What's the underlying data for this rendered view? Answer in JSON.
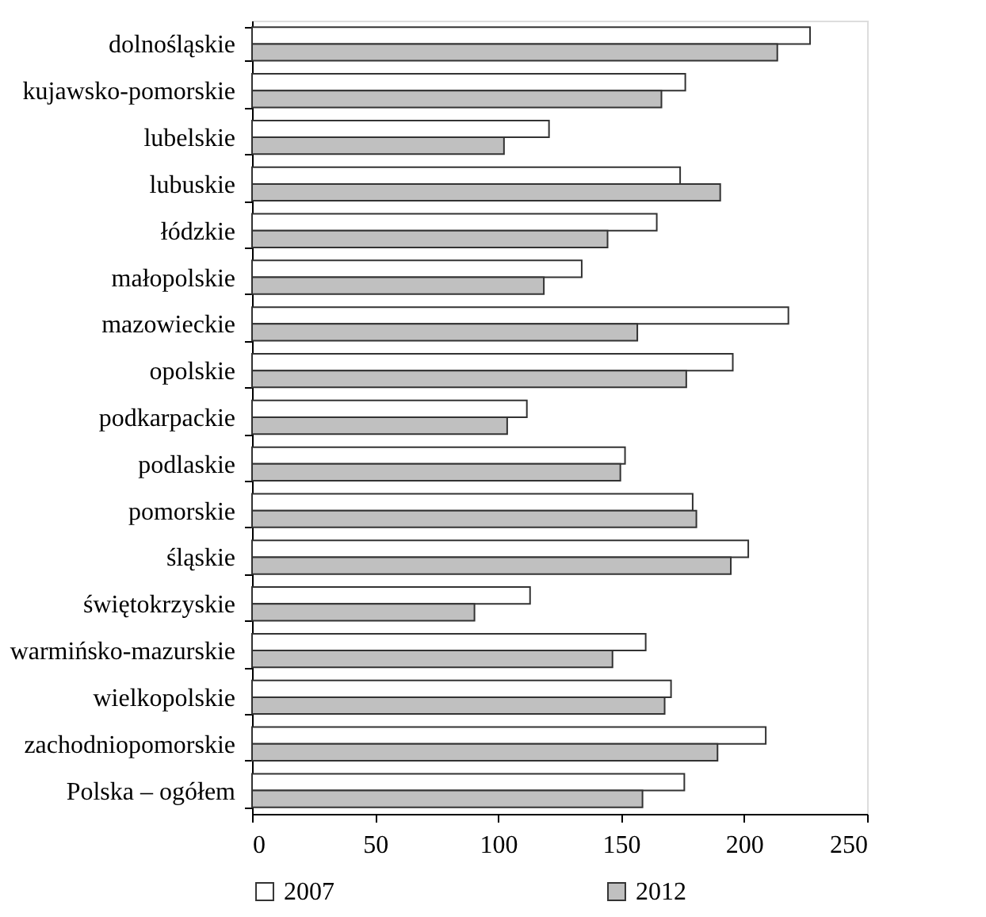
{
  "chart_data": {
    "type": "bar",
    "orientation": "horizontal",
    "categories": [
      "dolnośląskie",
      "kujawsko-pomorskie",
      "lubelskie",
      "lubuskie",
      "łódzkie",
      "małopolskie",
      "mazowieckie",
      "opolskie",
      "podkarpackie",
      "podlaskie",
      "pomorskie",
      "śląskie",
      "świętokrzyskie",
      "warmińsko-mazurskie",
      "wielkopolskie",
      "zachodniopomorskie",
      "Polska – ogółem"
    ],
    "series": [
      {
        "name": "2007",
        "color": "#ffffff",
        "values": [
          226.8,
          176.1,
          120.7,
          174.0,
          164.5,
          134.0,
          218.0,
          195.4,
          111.7,
          151.6,
          179.1,
          201.7,
          113.0,
          160.0,
          170.3,
          208.8,
          175.7
        ]
      },
      {
        "name": "2012",
        "color": "#c0c0c0",
        "values": [
          213.5,
          166.4,
          102.4,
          190.3,
          144.5,
          118.6,
          156.6,
          176.5,
          103.7,
          149.7,
          180.6,
          194.6,
          90.4,
          146.5,
          167.7,
          189.2,
          158.7
        ]
      }
    ],
    "xlim": [
      0,
      250
    ],
    "xticks": [
      0,
      50,
      100,
      150,
      200,
      250
    ],
    "grid": false,
    "legend": "bottom"
  }
}
